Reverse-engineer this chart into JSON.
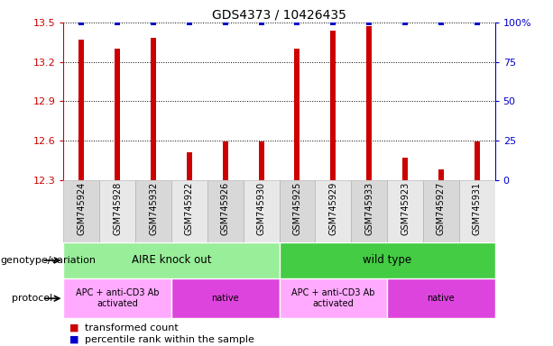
{
  "title": "GDS4373 / 10426435",
  "samples": [
    "GSM745924",
    "GSM745928",
    "GSM745932",
    "GSM745922",
    "GSM745926",
    "GSM745930",
    "GSM745925",
    "GSM745929",
    "GSM745933",
    "GSM745923",
    "GSM745927",
    "GSM745931"
  ],
  "bar_values": [
    13.37,
    13.3,
    13.38,
    12.51,
    12.59,
    12.59,
    13.3,
    13.44,
    13.47,
    12.47,
    12.38,
    12.59
  ],
  "percentile_values": [
    100,
    100,
    100,
    100,
    100,
    100,
    100,
    100,
    100,
    100,
    100,
    100
  ],
  "bar_color": "#cc0000",
  "percentile_color": "#0000cc",
  "ylim_left": [
    12.3,
    13.5
  ],
  "yticks_left": [
    12.3,
    12.6,
    12.9,
    13.2,
    13.5
  ],
  "ylim_right": [
    0,
    100
  ],
  "yticks_right": [
    0,
    25,
    50,
    75,
    100
  ],
  "ytick_labels_right": [
    "0",
    "25",
    "50",
    "75",
    "100%"
  ],
  "bar_width": 0.15,
  "genotype_groups": [
    {
      "label": "AIRE knock out",
      "start": 0,
      "end": 6,
      "color": "#99ee99"
    },
    {
      "label": "wild type",
      "start": 6,
      "end": 12,
      "color": "#44cc44"
    }
  ],
  "protocol_groups": [
    {
      "label": "APC + anti-CD3 Ab\nactivated",
      "start": 0,
      "end": 3,
      "color": "#ffaaff"
    },
    {
      "label": "native",
      "start": 3,
      "end": 6,
      "color": "#dd44dd"
    },
    {
      "label": "APC + anti-CD3 Ab\nactivated",
      "start": 6,
      "end": 9,
      "color": "#ffaaff"
    },
    {
      "label": "native",
      "start": 9,
      "end": 12,
      "color": "#dd44dd"
    }
  ],
  "legend_items": [
    {
      "label": "transformed count",
      "color": "#cc0000"
    },
    {
      "label": "percentile rank within the sample",
      "color": "#0000cc"
    }
  ],
  "genotype_label": "genotype/variation",
  "protocol_label": "protocol",
  "axis_color_left": "#cc0000",
  "axis_color_right": "#0000cc",
  "bg_color_even": "#d8d8d8",
  "bg_color_odd": "#e8e8e8"
}
